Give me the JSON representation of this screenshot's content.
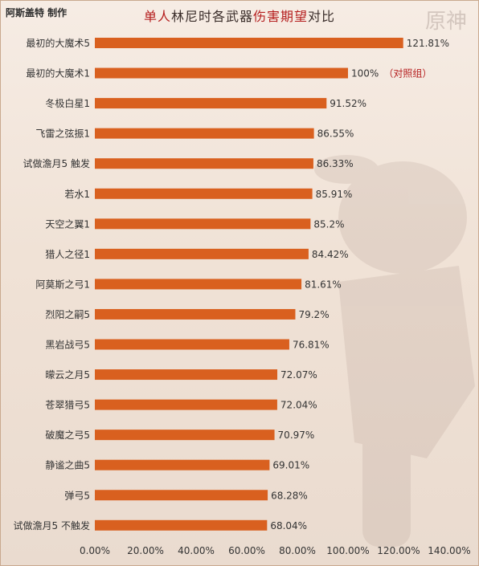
{
  "header": {
    "credit": "阿斯盖特 制作",
    "title_prefix": "单人",
    "title_mid": "林尼时各武器",
    "title_highlight": "伤害期望",
    "title_suffix": "对比",
    "logo_text": "原神"
  },
  "chart_data": {
    "type": "bar",
    "orientation": "horizontal",
    "categories": [
      "最初的大魔术5",
      "最初的大魔术1",
      "冬极白星1",
      "飞雷之弦振1",
      "试做澹月5 触发",
      "若水1",
      "天空之翼1",
      "猎人之径1",
      "阿莫斯之弓1",
      "烈阳之嗣5",
      "黑岩战弓5",
      "曚云之月5",
      "苍翠猎弓5",
      "破魔之弓5",
      "静谧之曲5",
      "弹弓5",
      "试做澹月5 不触发"
    ],
    "values": [
      121.81,
      100,
      91.52,
      86.55,
      86.33,
      85.91,
      85.2,
      84.42,
      81.61,
      79.2,
      76.81,
      72.07,
      72.04,
      70.97,
      69.01,
      68.28,
      68.04
    ],
    "value_labels": [
      "121.81%",
      "100%",
      "91.52%",
      "86.55%",
      "86.33%",
      "85.91%",
      "85.2%",
      "84.42%",
      "81.61%",
      "79.2%",
      "76.81%",
      "72.07%",
      "72.04%",
      "70.97%",
      "69.01%",
      "68.28%",
      "68.04%"
    ],
    "annotation": {
      "index": 1,
      "text": "（对照组）"
    },
    "x_ticks": [
      "0.00%",
      "20.00%",
      "40.00%",
      "60.00%",
      "80.00%",
      "100.00%",
      "120.00%",
      "140.00%"
    ],
    "xlim": [
      0,
      140
    ],
    "grid": false,
    "bar_color": "#d9601f",
    "note_color": "#b51f1f"
  }
}
